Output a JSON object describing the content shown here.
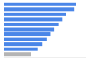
{
  "chart_data": {
    "type": "bar",
    "orientation": "horizontal",
    "categories": [
      null,
      null,
      null,
      null,
      null,
      null,
      null,
      null,
      null,
      null,
      null
    ],
    "values": [
      88,
      85,
      75,
      71,
      67,
      61,
      57,
      52,
      47,
      41,
      33
    ],
    "colors": [
      "#4a86e8",
      "#4a86e8",
      "#4a86e8",
      "#4a86e8",
      "#4a86e8",
      "#4a86e8",
      "#4a86e8",
      "#4a86e8",
      "#4a86e8",
      "#4a86e8",
      "#b4b4b4"
    ],
    "ylim": [
      0,
      100
    ],
    "tick_labels": false,
    "grid": false
  }
}
